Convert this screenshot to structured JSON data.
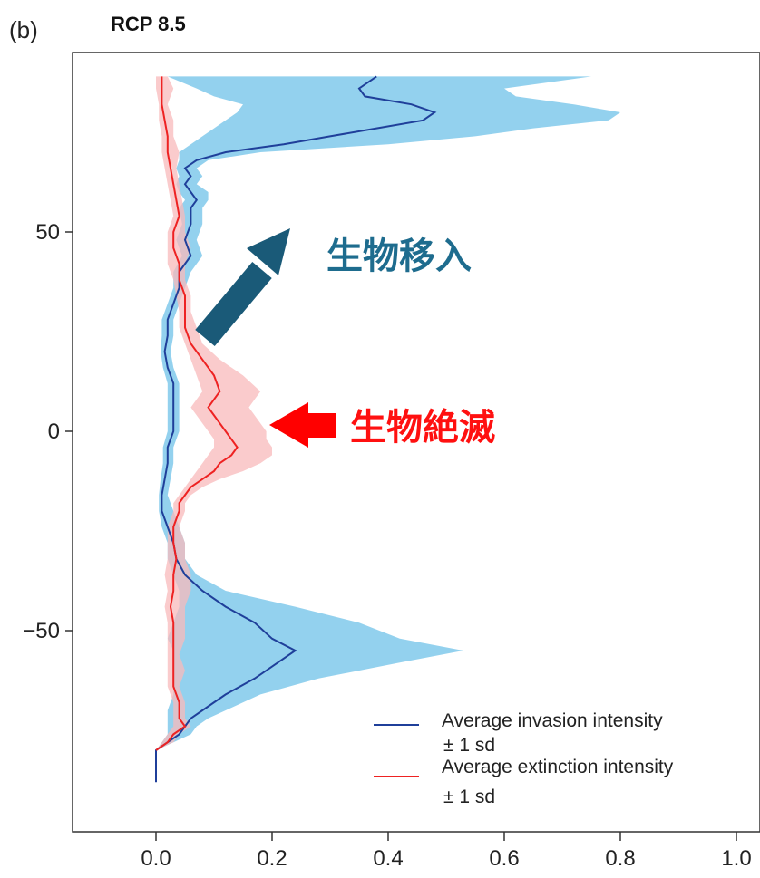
{
  "panel_label": "(b)",
  "colors": {
    "invasion_line": "#1f3f9a",
    "invasion_band": "#87ccec",
    "extinction_line": "#ee2222",
    "extinction_band": "#f8b9bb",
    "arrow_invasion": "#1a5a78",
    "arrow_extinction": "#ff0000",
    "text_invasion": "#1e6c8e",
    "text_extinction": "#ff1010"
  },
  "annotations": {
    "invasion": "生物移入",
    "extinction": "生物絶滅"
  },
  "legend": {
    "invasion": "Average invasion intensity",
    "invasion_sd": "± 1 sd",
    "extinction": "Average extinction intensity",
    "extinction_sd": "± 1 sd"
  },
  "chart_data": {
    "type": "area",
    "title": "RCP 8.5",
    "xlabel": "",
    "ylabel": "",
    "xlim": [
      0,
      1.0
    ],
    "ylim": [
      -90,
      90
    ],
    "x_ticks": [
      "0.0",
      "0.2",
      "0.4",
      "0.6",
      "0.8",
      "1.0"
    ],
    "y_ticks": [
      "50",
      "0",
      "−50"
    ],
    "y_tick_values": [
      50,
      0,
      -50
    ],
    "grid": false,
    "legend_position": "bottom-right",
    "series": [
      {
        "name": "Average invasion intensity",
        "role": "invasion",
        "latitude": [
          89,
          86,
          84,
          82,
          80,
          78,
          76,
          74,
          72,
          70,
          68,
          66,
          64,
          62,
          60,
          58,
          56,
          52,
          48,
          44,
          40,
          36,
          32,
          28,
          24,
          20,
          16,
          12,
          8,
          4,
          0,
          -4,
          -8,
          -12,
          -16,
          -20,
          -24,
          -28,
          -32,
          -36,
          -40,
          -44,
          -48,
          -52,
          -55,
          -58,
          -62,
          -66,
          -70,
          -72,
          -74,
          -76,
          -78,
          -80,
          -82,
          -84,
          -86,
          -88
        ],
        "mean": [
          0.38,
          0.35,
          0.36,
          0.44,
          0.48,
          0.46,
          0.38,
          0.3,
          0.22,
          0.12,
          0.07,
          0.05,
          0.06,
          0.05,
          0.06,
          0.07,
          0.06,
          0.06,
          0.05,
          0.06,
          0.04,
          0.04,
          0.03,
          0.02,
          0.02,
          0.015,
          0.02,
          0.03,
          0.03,
          0.03,
          0.03,
          0.02,
          0.02,
          0.015,
          0.01,
          0.01,
          0.02,
          0.03,
          0.035,
          0.05,
          0.08,
          0.12,
          0.17,
          0.2,
          0.24,
          0.21,
          0.17,
          0.12,
          0.08,
          0.06,
          0.05,
          0.04,
          0.02,
          0.0,
          0.0,
          0.0,
          0.0,
          0.0
        ],
        "lower": [
          0.02,
          0.07,
          0.1,
          0.15,
          0.14,
          0.12,
          0.1,
          0.08,
          0.06,
          0.04,
          0.04,
          0.035,
          0.04,
          0.035,
          0.04,
          0.05,
          0.04,
          0.045,
          0.035,
          0.045,
          0.03,
          0.03,
          0.02,
          0.01,
          0.01,
          0.008,
          0.012,
          0.02,
          0.02,
          0.02,
          0.02,
          0.012,
          0.012,
          0.008,
          0.005,
          0.005,
          0.01,
          0.02,
          0.02,
          0.03,
          0.04,
          0.04,
          0.03,
          0.02,
          0.03,
          0.03,
          0.03,
          0.03,
          0.02,
          0.02,
          0.02,
          0.02,
          0.01,
          0.0,
          0.0,
          0.0,
          0.0,
          0.0
        ],
        "upper": [
          0.75,
          0.6,
          0.62,
          0.72,
          0.8,
          0.78,
          0.65,
          0.55,
          0.4,
          0.18,
          0.09,
          0.07,
          0.08,
          0.07,
          0.09,
          0.09,
          0.08,
          0.08,
          0.07,
          0.08,
          0.06,
          0.05,
          0.04,
          0.03,
          0.03,
          0.025,
          0.03,
          0.04,
          0.04,
          0.04,
          0.04,
          0.03,
          0.03,
          0.025,
          0.02,
          0.03,
          0.04,
          0.05,
          0.05,
          0.07,
          0.12,
          0.24,
          0.35,
          0.42,
          0.53,
          0.42,
          0.28,
          0.18,
          0.12,
          0.09,
          0.07,
          0.06,
          0.03,
          0.0,
          0.0,
          0.0,
          0.0,
          0.0
        ]
      },
      {
        "name": "Average extinction intensity",
        "role": "extinction",
        "latitude": [
          89,
          86,
          82,
          78,
          74,
          70,
          66,
          62,
          58,
          54,
          50,
          46,
          42,
          38,
          34,
          30,
          26,
          22,
          18,
          14,
          10,
          8,
          6,
          4,
          2,
          0,
          -2,
          -4,
          -6,
          -8,
          -10,
          -12,
          -14,
          -16,
          -18,
          -20,
          -24,
          -28,
          -32,
          -36,
          -40,
          -44,
          -48,
          -52,
          -56,
          -60,
          -64,
          -68,
          -72,
          -74,
          -76,
          -78,
          -80
        ],
        "mean": [
          0.01,
          0.01,
          0.01,
          0.015,
          0.02,
          0.02,
          0.025,
          0.03,
          0.035,
          0.04,
          0.03,
          0.03,
          0.04,
          0.04,
          0.05,
          0.05,
          0.05,
          0.06,
          0.08,
          0.1,
          0.11,
          0.1,
          0.09,
          0.1,
          0.11,
          0.12,
          0.13,
          0.14,
          0.13,
          0.11,
          0.1,
          0.08,
          0.06,
          0.05,
          0.04,
          0.04,
          0.03,
          0.03,
          0.035,
          0.03,
          0.03,
          0.025,
          0.03,
          0.03,
          0.03,
          0.03,
          0.03,
          0.04,
          0.04,
          0.05,
          0.03,
          0.02,
          0.0
        ],
        "lower": [
          0.0,
          0.0,
          0.005,
          0.005,
          0.01,
          0.01,
          0.015,
          0.02,
          0.025,
          0.03,
          0.02,
          0.02,
          0.02,
          0.03,
          0.035,
          0.04,
          0.04,
          0.05,
          0.06,
          0.07,
          0.08,
          0.07,
          0.06,
          0.07,
          0.08,
          0.09,
          0.1,
          0.1,
          0.09,
          0.08,
          0.07,
          0.06,
          0.05,
          0.04,
          0.03,
          0.03,
          0.02,
          0.02,
          0.02,
          0.015,
          0.02,
          0.015,
          0.02,
          0.02,
          0.02,
          0.02,
          0.02,
          0.03,
          0.03,
          0.03,
          0.02,
          0.01,
          0.0
        ],
        "upper": [
          0.02,
          0.03,
          0.02,
          0.03,
          0.03,
          0.04,
          0.035,
          0.04,
          0.045,
          0.05,
          0.05,
          0.06,
          0.05,
          0.05,
          0.06,
          0.06,
          0.07,
          0.08,
          0.11,
          0.15,
          0.18,
          0.17,
          0.16,
          0.17,
          0.18,
          0.19,
          0.19,
          0.2,
          0.2,
          0.18,
          0.15,
          0.11,
          0.08,
          0.06,
          0.05,
          0.05,
          0.04,
          0.05,
          0.05,
          0.06,
          0.06,
          0.05,
          0.05,
          0.05,
          0.04,
          0.05,
          0.04,
          0.05,
          0.05,
          0.06,
          0.04,
          0.03,
          0.0
        ]
      }
    ]
  }
}
